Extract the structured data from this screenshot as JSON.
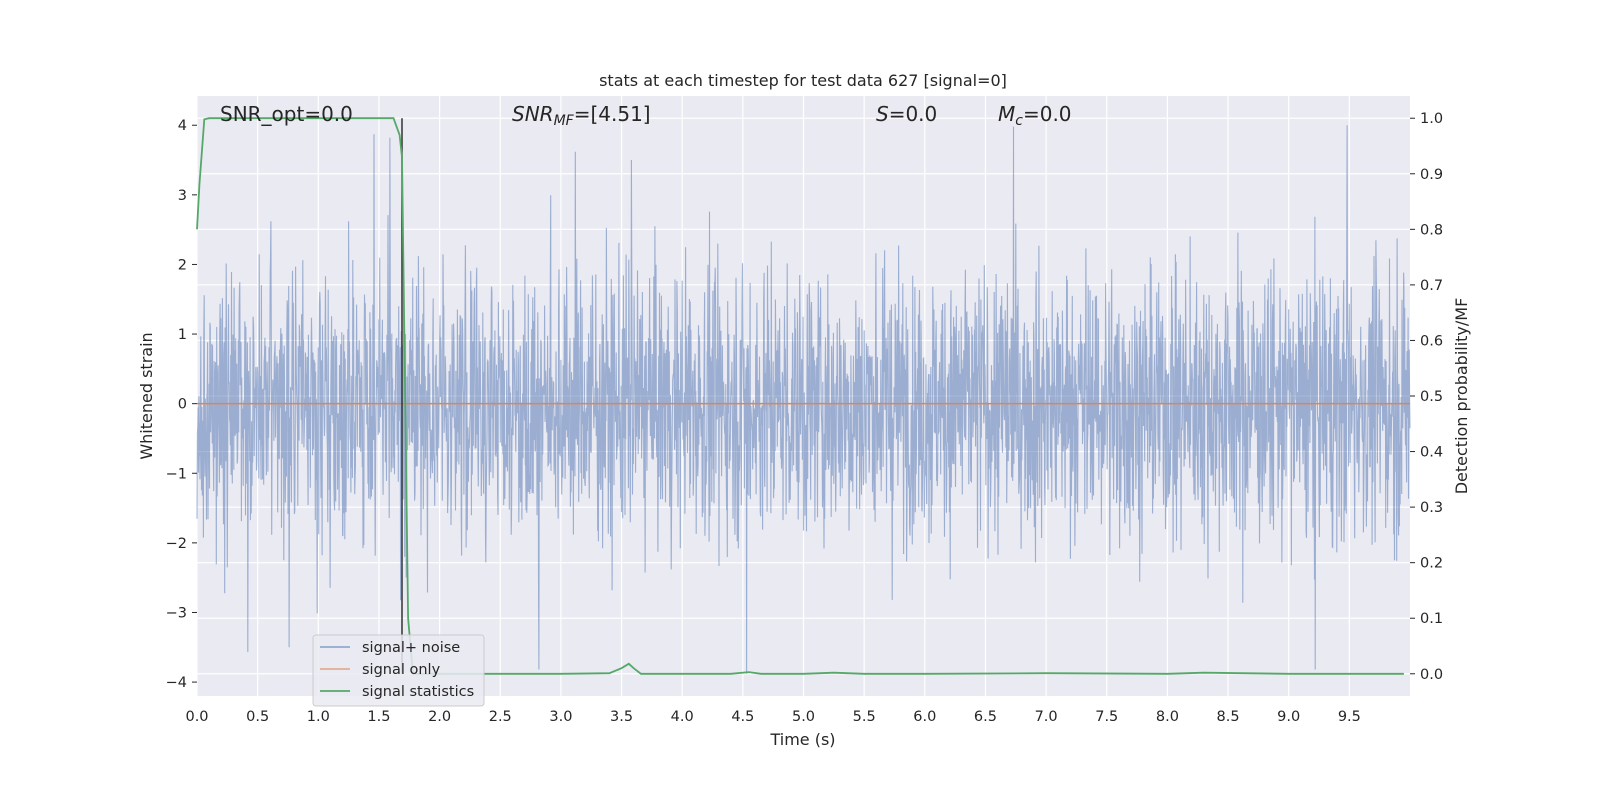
{
  "chart_data": {
    "type": "line",
    "title": "stats at each timestep for test data 627 [signal=0]",
    "xlabel": "Time (s)",
    "ylabel": "Whitened strain",
    "y2label": "Detection probability/MF",
    "xlim": [
      0,
      10
    ],
    "ylim": [
      -4.2,
      4.42
    ],
    "y2lim": [
      -0.04,
      1.04
    ],
    "xticks": [
      "0.0",
      "0.5",
      "1.0",
      "1.5",
      "2.0",
      "2.5",
      "3.0",
      "3.5",
      "4.0",
      "4.5",
      "5.0",
      "5.5",
      "6.0",
      "6.5",
      "7.0",
      "7.5",
      "8.0",
      "8.5",
      "9.0",
      "9.5"
    ],
    "yticks": [
      "−4",
      "−3",
      "−2",
      "−1",
      "0",
      "1",
      "2",
      "3",
      "4"
    ],
    "y2ticks": [
      "0.0",
      "0.1",
      "0.2",
      "0.3",
      "0.4",
      "0.5",
      "0.6",
      "0.7",
      "0.8",
      "0.9",
      "1.0"
    ],
    "grid": true,
    "legend_position": "lower-left",
    "annotations": {
      "snr_opt": "SNR_opt=0.0",
      "snr_mf_main": "SNR",
      "snr_mf_sub": "MF",
      "snr_mf_val": "=[4.51]",
      "s_main": "S",
      "s_val": "=0.0",
      "mc_main": "M",
      "mc_sub": "c",
      "mc_val": "=0.0"
    },
    "vline_x": 1.69,
    "series": [
      {
        "name": "signal+ noise",
        "color": "#4c72b0",
        "axis": "left",
        "noise_amplitude_envelope": {
          "x": [
            0,
            10
          ],
          "y_min": [
            -4.0,
            -4.0
          ],
          "y_max": [
            4.0,
            4.0
          ]
        },
        "peaks": [
          {
            "x": 1.46,
            "y": 3.87
          },
          {
            "x": 1.59,
            "y": 3.82
          },
          {
            "x": 3.12,
            "y": 3.62
          },
          {
            "x": 3.58,
            "y": 3.5
          },
          {
            "x": 6.73,
            "y": 3.98
          },
          {
            "x": 9.48,
            "y": 4.0
          },
          {
            "x": 2.82,
            "y": -3.82
          },
          {
            "x": 4.53,
            "y": -3.88
          },
          {
            "x": 9.22,
            "y": -3.82
          },
          {
            "x": 0.42,
            "y": -3.57
          },
          {
            "x": 0.76,
            "y": -3.5
          }
        ]
      },
      {
        "name": "signal only",
        "color": "#dd8452",
        "axis": "left",
        "x": [
          0,
          10
        ],
        "y": [
          0,
          0
        ]
      },
      {
        "name": "signal statistics",
        "color": "#55a868",
        "axis": "right",
        "x": [
          0.0,
          0.02,
          0.06,
          0.1,
          0.2,
          0.5,
          1.0,
          1.5,
          1.62,
          1.67,
          1.69,
          1.71,
          1.74,
          1.78,
          1.9,
          2.5,
          3.0,
          3.4,
          3.5,
          3.56,
          3.6,
          3.66,
          3.8,
          4.4,
          4.55,
          4.65,
          5.0,
          5.25,
          5.5,
          6.0,
          7.0,
          8.0,
          8.3,
          9.0,
          9.95
        ],
        "y": [
          0.8,
          0.88,
          0.998,
          1.0,
          1.0,
          1.0,
          1.0,
          1.0,
          1.0,
          0.97,
          0.93,
          0.6,
          0.1,
          0.0,
          0.0,
          0.0,
          0.0,
          0.001,
          0.01,
          0.018,
          0.01,
          0.0,
          0.0,
          0.0,
          0.003,
          0.0,
          0.0,
          0.002,
          0.0,
          0.0,
          0.001,
          0.0,
          0.002,
          0.0,
          0.0
        ]
      }
    ]
  }
}
